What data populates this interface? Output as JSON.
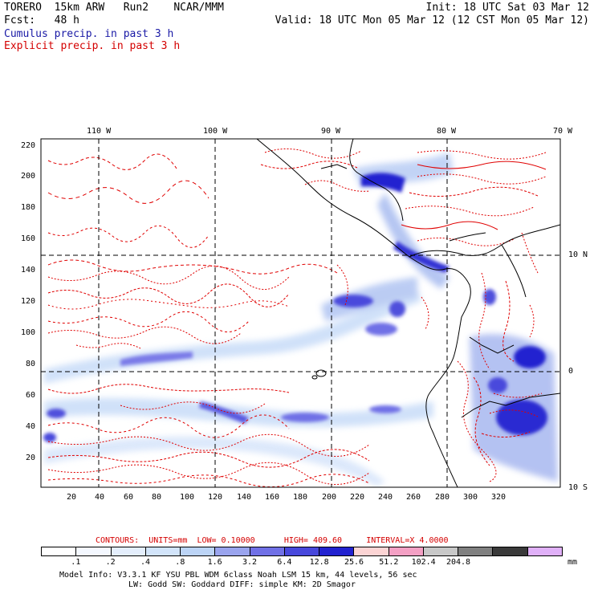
{
  "header": {
    "model": "TORERO",
    "resolution": "15km ARW",
    "run": "Run2",
    "org": "NCAR/MMM",
    "init": "Init: 18 UTC Sat 03 Mar 12",
    "fcst_label": "Fcst:",
    "fcst_value": "48 h",
    "valid": "Valid: 18 UTC Mon 05 Mar 12 (12 CST Mon 05 Mar 12)",
    "field1": "Cumulus precip. in past 3 h",
    "field2": "Explicit precip. in past 3 h"
  },
  "map": {
    "lon_labels": [
      "110 W",
      "100 W",
      "90 W",
      "80 W",
      "70 W"
    ],
    "lat_labels": [
      "10 N",
      "0",
      "10 S"
    ],
    "y_ticks": [
      "220",
      "200",
      "180",
      "160",
      "140",
      "120",
      "100",
      "80",
      "60",
      "40",
      "20"
    ],
    "x_ticks": [
      "20",
      "40",
      "60",
      "80",
      "100",
      "120",
      "140",
      "160",
      "180",
      "200",
      "220",
      "240",
      "260",
      "280",
      "300",
      "320"
    ]
  },
  "contours": {
    "label": "CONTOURS:",
    "units": "UNITS=mm",
    "low": "LOW= 0.10000",
    "high": "HIGH= 409.60",
    "interval": "INTERVAL=X 4.0000"
  },
  "colorbar": {
    "colors": [
      "#ffffff",
      "#f4f8ff",
      "#e4eefc",
      "#d2e4fa",
      "#bcd4f6",
      "#9aa4ee",
      "#7070e6",
      "#4848dc",
      "#2222d0",
      "#fcd4d4",
      "#f4a0c4",
      "#c8c8c8",
      "#808080",
      "#3a3a3a",
      "#e0b0f8"
    ],
    "labels": [
      ".1",
      ".2",
      ".4",
      ".8",
      "1.6",
      "3.2",
      "6.4",
      "12.8",
      "25.6",
      "51.2",
      "102.4",
      "204.8"
    ],
    "unit": "mm"
  },
  "footer": {
    "line1": "Model Info: V3.3.1    KF     YSU PBL   WDM 6class  Noah LSM  15 km,    44 levels,    56 sec",
    "line2": "LW: Godd SW: Goddard DIFF: simple KM: 2D Smagor"
  }
}
